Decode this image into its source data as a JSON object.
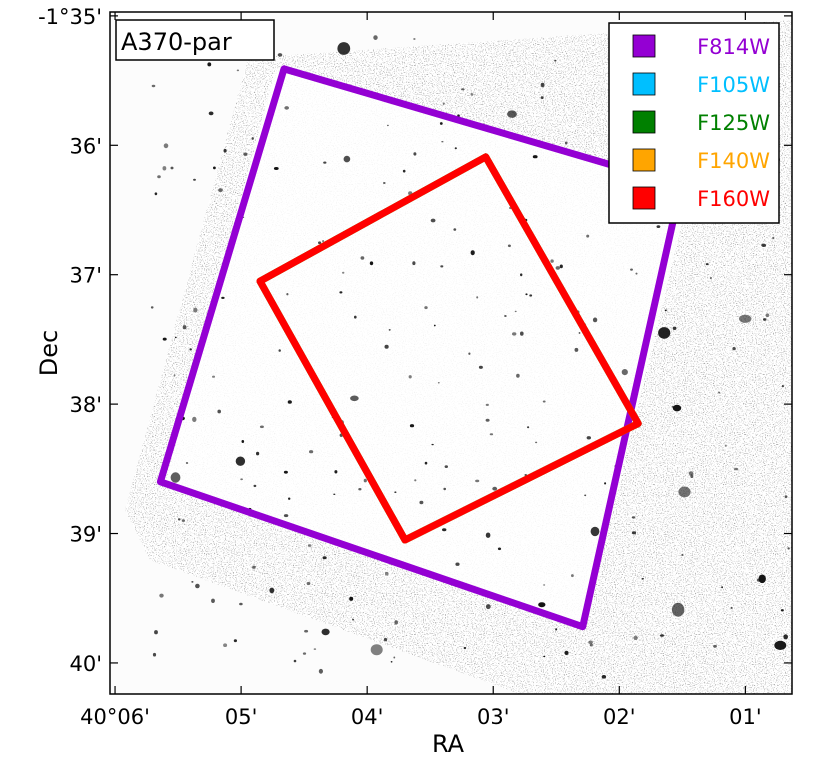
{
  "chart_data": {
    "type": "scatter",
    "title": "",
    "panel_label": "A370-par",
    "xlabel": "RA",
    "ylabel": "Dec",
    "x_ticks": [
      {
        "value": 6.0,
        "label": "40°06'"
      },
      {
        "value": 5.0,
        "label": "05'"
      },
      {
        "value": 4.0,
        "label": "04'"
      },
      {
        "value": 3.0,
        "label": "03'"
      },
      {
        "value": 2.0,
        "label": "02'"
      },
      {
        "value": 1.0,
        "label": "01'"
      }
    ],
    "y_ticks": [
      {
        "value": 35.0,
        "label": "-1°35'"
      },
      {
        "value": 36.0,
        "label": "36'"
      },
      {
        "value": 37.0,
        "label": "37'"
      },
      {
        "value": 38.0,
        "label": "38'"
      },
      {
        "value": 39.0,
        "label": "39'"
      },
      {
        "value": 40.0,
        "label": "40'"
      }
    ],
    "x_range": [
      6.04,
      0.63
    ],
    "y_range": [
      34.97,
      40.24
    ],
    "legend_position": "top-right",
    "series": [
      {
        "name": "F814W",
        "color": "#9400D3",
        "points": [
          [
            4.66,
            35.41
          ],
          [
            1.51,
            36.31
          ],
          [
            2.29,
            39.72
          ],
          [
            5.64,
            38.6
          ],
          [
            4.66,
            35.41
          ]
        ]
      },
      {
        "name": "F105W",
        "color": "#00BFFF",
        "points": [
          [
            3.06,
            36.09
          ],
          [
            1.85,
            38.15
          ],
          [
            3.7,
            39.05
          ],
          [
            4.85,
            37.05
          ],
          [
            3.06,
            36.09
          ]
        ]
      },
      {
        "name": "F125W",
        "color": "#008000",
        "points": [
          [
            3.06,
            36.09
          ],
          [
            1.85,
            38.15
          ],
          [
            3.7,
            39.05
          ],
          [
            4.85,
            37.05
          ],
          [
            3.06,
            36.09
          ]
        ]
      },
      {
        "name": "F140W",
        "color": "#FFA500",
        "points": [
          [
            3.06,
            36.09
          ],
          [
            1.85,
            38.15
          ],
          [
            3.7,
            39.05
          ],
          [
            4.85,
            37.05
          ],
          [
            3.06,
            36.09
          ]
        ]
      },
      {
        "name": "F160W",
        "color": "#FF0000",
        "points": [
          [
            3.06,
            36.09
          ],
          [
            1.85,
            38.15
          ],
          [
            3.7,
            39.05
          ],
          [
            4.85,
            37.05
          ],
          [
            3.06,
            36.09
          ]
        ]
      }
    ]
  }
}
